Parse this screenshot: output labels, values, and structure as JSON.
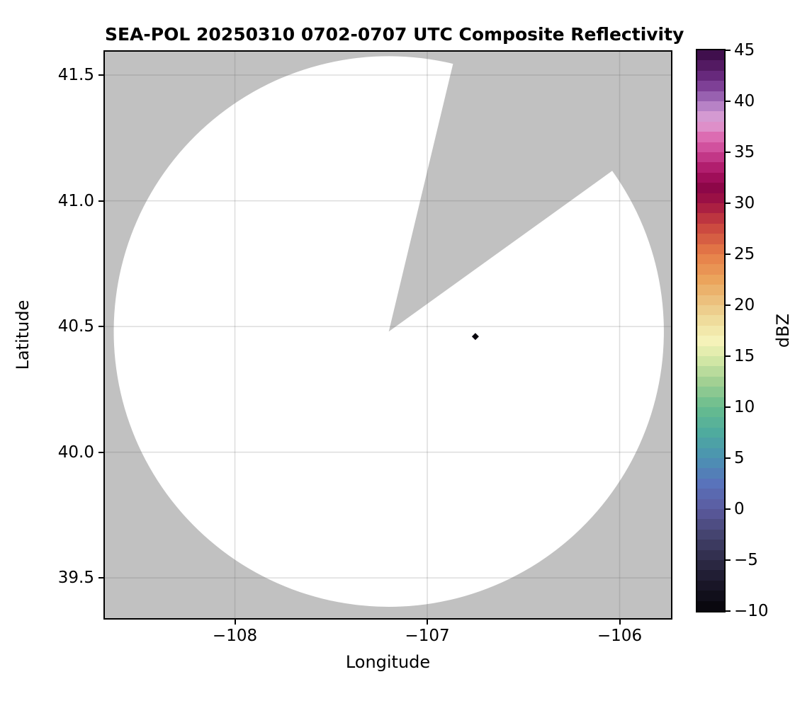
{
  "title": "SEA-POL 20250310 0702-0707 UTC Composite Reflectivity",
  "chart_data": {
    "type": "heatmap",
    "title": "SEA-POL 20250310 0702-0707 UTC Composite Reflectivity",
    "xlabel": "Longitude",
    "ylabel": "Latitude",
    "xlim": [
      -108.676,
      -105.733
    ],
    "ylim": [
      39.34,
      41.593
    ],
    "grid": true,
    "grid_color": "rgba(100,100,100,0.22)",
    "outside_range_color": "#c1c1c1",
    "coverage_fill_color": "#ffffff",
    "xticks": [
      {
        "value": -108,
        "label": "−108"
      },
      {
        "value": -107,
        "label": "−107"
      },
      {
        "value": -106,
        "label": "−106"
      }
    ],
    "yticks": [
      {
        "value": 39.5,
        "label": "39.5"
      },
      {
        "value": 40.0,
        "label": "40.0"
      },
      {
        "value": 40.5,
        "label": "40.5"
      },
      {
        "value": 41.0,
        "label": "41.0"
      },
      {
        "value": 41.5,
        "label": "41.5"
      }
    ],
    "radar": {
      "name": "SEA-POL",
      "center_lon": -107.2,
      "center_lat": 40.48,
      "range_lon_deg": 1.43,
      "range_lat_deg": 1.095,
      "missing_sector_azimuth_start_deg": 13.5,
      "missing_sector_azimuth_end_deg": 54.3
    },
    "echoes": [
      {
        "lon": -106.75,
        "lat": 40.46,
        "value_dbz": -10,
        "marker": "diamond",
        "color": "#08060d"
      }
    ],
    "colorbar": {
      "label": "dBZ",
      "min": -10,
      "max": 45,
      "band_step_dbz": 1,
      "ticks": [
        {
          "value": 45,
          "label": "45"
        },
        {
          "value": 40,
          "label": "40"
        },
        {
          "value": 35,
          "label": "35"
        },
        {
          "value": 30,
          "label": "30"
        },
        {
          "value": 25,
          "label": "25"
        },
        {
          "value": 20,
          "label": "20"
        },
        {
          "value": 15,
          "label": "15"
        },
        {
          "value": 10,
          "label": "10"
        },
        {
          "value": 5,
          "label": "5"
        },
        {
          "value": 0,
          "label": "0"
        },
        {
          "value": -5,
          "label": "−5"
        },
        {
          "value": -10,
          "label": "−10"
        }
      ],
      "color_stops": [
        [
          -10,
          "#060409"
        ],
        [
          -7.5,
          "#191627"
        ],
        [
          -5,
          "#2e2b48"
        ],
        [
          -2.5,
          "#454470"
        ],
        [
          0,
          "#5b5ba0"
        ],
        [
          2.5,
          "#5973bb"
        ],
        [
          5,
          "#4b92b2"
        ],
        [
          7.5,
          "#4fab9e"
        ],
        [
          10,
          "#68bc8e"
        ],
        [
          12.5,
          "#a2d093"
        ],
        [
          15,
          "#dcebaa"
        ],
        [
          16.5,
          "#f5f2b9"
        ],
        [
          18,
          "#f0e3a4"
        ],
        [
          20,
          "#ecc785"
        ],
        [
          22.5,
          "#eba45c"
        ],
        [
          25,
          "#e67d48"
        ],
        [
          27.5,
          "#cc4a40"
        ],
        [
          29,
          "#b52b40"
        ],
        [
          30,
          "#a11544"
        ],
        [
          31.5,
          "#8d0748"
        ],
        [
          33,
          "#a81261"
        ],
        [
          35,
          "#cb4394"
        ],
        [
          36.5,
          "#dc6cb2"
        ],
        [
          38,
          "#dfa0d5"
        ],
        [
          39,
          "#c893cf"
        ],
        [
          40,
          "#a571bd"
        ],
        [
          42,
          "#713089"
        ],
        [
          43.5,
          "#531a62"
        ],
        [
          45,
          "#360a42"
        ]
      ]
    }
  }
}
